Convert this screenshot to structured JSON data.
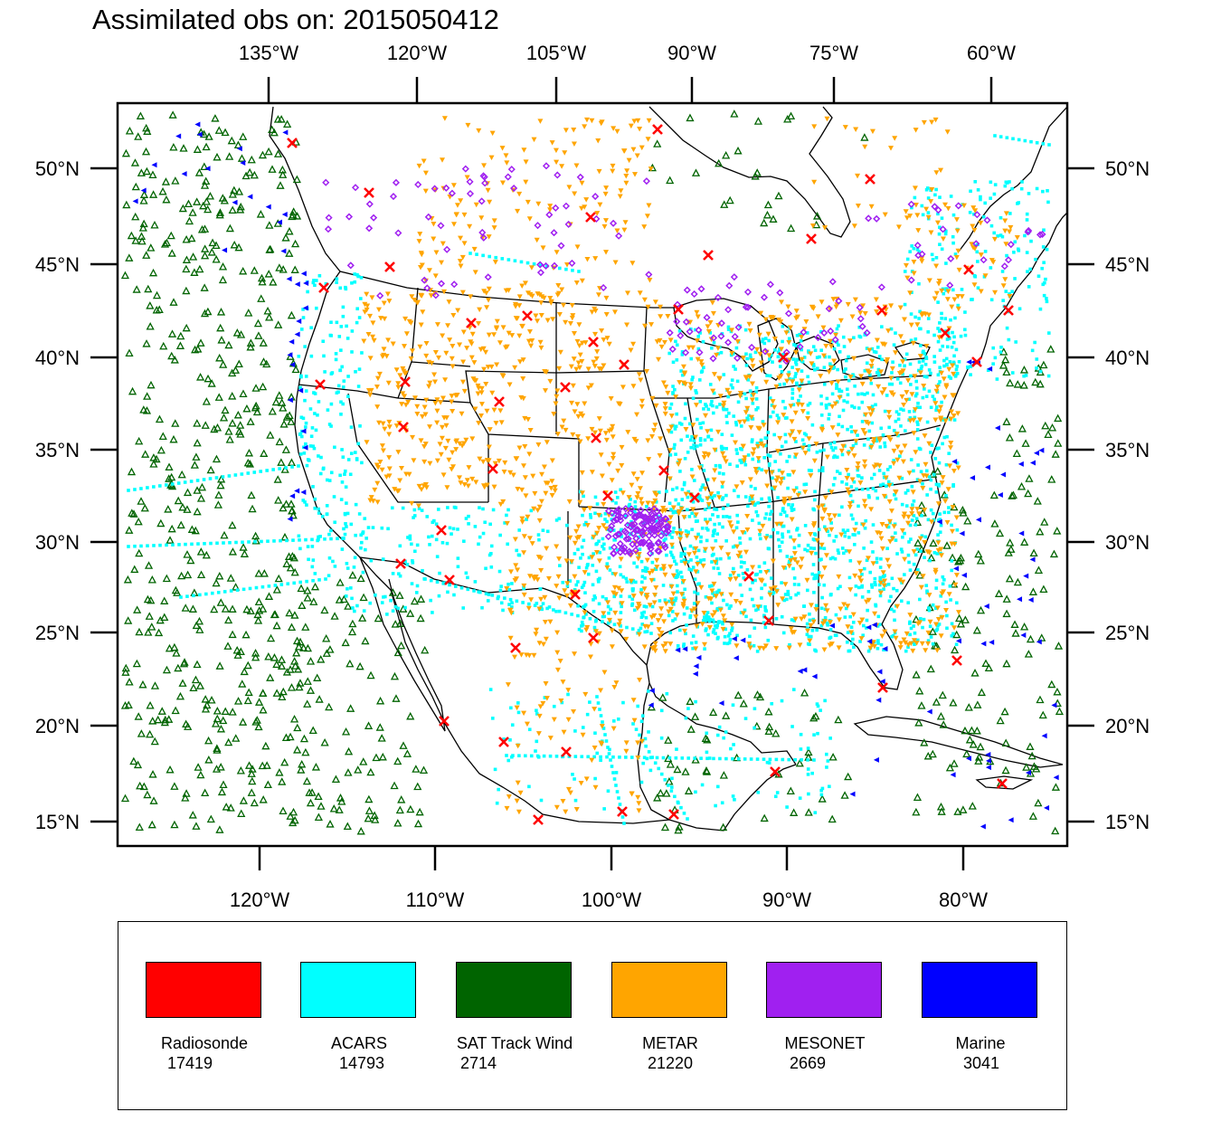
{
  "title": "Assimilated obs on: 2015050412",
  "map": {
    "top_axis_labels": [
      "135°W",
      "120°W",
      "105°W",
      "90°W",
      "75°W",
      "60°W"
    ],
    "bottom_axis_labels": [
      "120°W",
      "110°W",
      "100°W",
      "90°W",
      "80°W"
    ],
    "left_axis_labels": [
      "50°N",
      "45°N",
      "40°N",
      "35°N",
      "30°N",
      "25°N",
      "20°N",
      "15°N"
    ],
    "right_axis_labels": [
      "50°N",
      "45°N",
      "40°N",
      "35°N",
      "30°N",
      "25°N",
      "20°N",
      "15°N"
    ],
    "lon_range": [
      -128,
      -74
    ],
    "lat_range": [
      13.5,
      53.5
    ]
  },
  "legend": {
    "items": [
      {
        "name": "Radiosonde",
        "count": "17419",
        "color": "#ff0000"
      },
      {
        "name": "ACARS",
        "count": "14793",
        "color": "#00ffff"
      },
      {
        "name": "SAT Track Wind",
        "count": "2714",
        "color": "#006400"
      },
      {
        "name": "METAR",
        "count": "21220",
        "color": "#ffa500"
      },
      {
        "name": "MESONET",
        "count": "2669",
        "color": "#a020f0"
      },
      {
        "name": "Marine",
        "count": "3041",
        "color": "#0000ff"
      }
    ]
  }
}
